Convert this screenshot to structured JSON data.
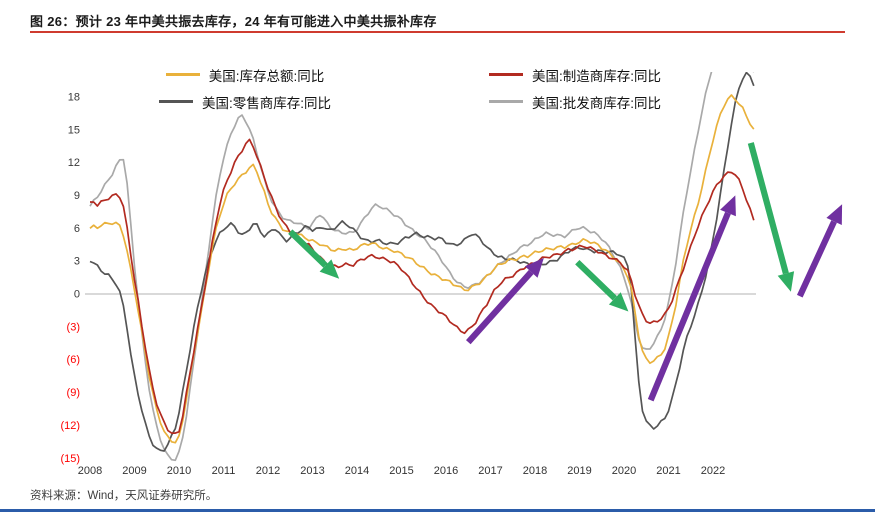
{
  "header": {
    "title": "图 26：预计 23 年中美共振去库存，24 年有可能进入中美共振补库存"
  },
  "footer": {
    "source": "资料来源：Wind，天风证券研究所。"
  },
  "chart_data": {
    "type": "line",
    "title": "图 26：预计 23 年中美共振去库存，24 年有可能进入中美共振补库存",
    "xlabel": "",
    "ylabel": "",
    "x_start_year": 2008,
    "x_step_months": 1,
    "xlim": [
      2007.8,
      2025.2
    ],
    "ylim": [
      -15.5,
      20.3
    ],
    "grid": "zero-line-only",
    "legend_position": "top",
    "x_ticks": [
      2008,
      2009,
      2010,
      2011,
      2012,
      2013,
      2014,
      2015,
      2016,
      2017,
      2018,
      2019,
      2020,
      2021,
      2022
    ],
    "y_ticks": [
      {
        "label": "18",
        "value": 18
      },
      {
        "label": "15",
        "value": 15
      },
      {
        "label": "12",
        "value": 12
      },
      {
        "label": "9",
        "value": 9
      },
      {
        "label": "6",
        "value": 6
      },
      {
        "label": "3",
        "value": 3
      },
      {
        "label": "0",
        "value": 0
      },
      {
        "label": "(3)",
        "value": -3
      },
      {
        "label": "(6)",
        "value": -6
      },
      {
        "label": "(9)",
        "value": -9
      },
      {
        "label": "(12)",
        "value": -12
      },
      {
        "label": "(15)",
        "value": -15
      }
    ],
    "colors": {
      "green_arrow": "#2FAE63",
      "purple_arrow": "#7030A0",
      "negative_tick": "#FF0000",
      "positive_tick": "#3A3A3A",
      "axis_text": "#333333",
      "zero_line": "#B3B3B3"
    },
    "series": [
      {
        "name": "美国:库存总额:同比",
        "color": "#E9B13B",
        "values": [
          6.0,
          6.1,
          6.0,
          6.2,
          6.3,
          6.4,
          6.5,
          6.5,
          6.3,
          5.5,
          4.0,
          2.2,
          0.4,
          -1.6,
          -3.6,
          -5.6,
          -7.6,
          -9.2,
          -10.6,
          -11.6,
          -12.5,
          -13.0,
          -13.3,
          -13.5,
          -13.1,
          -11.6,
          -9.6,
          -7.6,
          -5.6,
          -3.6,
          -1.6,
          0.4,
          2.4,
          4.4,
          6.0,
          7.2,
          8.2,
          9.0,
          9.5,
          10.0,
          10.4,
          10.8,
          11.2,
          11.6,
          11.8,
          11.3,
          10.3,
          9.3,
          8.2,
          7.4,
          6.8,
          6.3,
          5.9,
          5.7,
          5.6,
          5.7,
          5.6,
          5.4,
          5.2,
          5.0,
          4.8,
          4.6,
          4.5,
          4.3,
          4.2,
          4.1,
          4.0,
          4.1,
          4.2,
          4.2,
          4.1,
          4.0,
          4.2,
          4.3,
          4.4,
          4.5,
          4.6,
          4.5,
          4.4,
          4.3,
          4.2,
          4.1,
          4.0,
          3.8,
          3.6,
          3.4,
          3.2,
          3.0,
          2.8,
          2.6,
          2.4,
          2.2,
          2.0,
          1.8,
          1.6,
          1.4,
          1.2,
          1.0,
          0.8,
          0.7,
          0.5,
          0.4,
          0.5,
          0.7,
          0.9,
          1.1,
          1.3,
          1.6,
          1.9,
          2.2,
          2.5,
          2.7,
          2.9,
          3.1,
          3.2,
          3.3,
          3.4,
          3.5,
          3.5,
          3.6,
          3.7,
          3.8,
          3.9,
          4.0,
          4.1,
          4.2,
          4.3,
          4.4,
          4.4,
          4.5,
          4.5,
          4.6,
          4.7,
          4.8,
          4.8,
          4.7,
          4.6,
          4.5,
          4.3,
          4.1,
          3.8,
          3.5,
          3.1,
          2.7,
          2.2,
          1.5,
          0.3,
          -1.8,
          -3.8,
          -5.2,
          -5.9,
          -6.1,
          -6.0,
          -5.8,
          -5.5,
          -5.0,
          -4.0,
          -2.6,
          -1.0,
          1.0,
          3.0,
          4.6,
          6.0,
          7.2,
          8.4,
          9.8,
          11.2,
          12.6,
          14.0,
          15.2,
          16.3,
          17.2,
          17.8,
          18.1,
          17.9,
          17.5,
          17.0,
          16.3,
          15.6,
          14.9
        ]
      },
      {
        "name": "美国:制造商库存:同比",
        "color": "#B22A20",
        "values": [
          8.2,
          8.4,
          8.0,
          8.3,
          8.6,
          8.8,
          9.0,
          9.2,
          9.0,
          8.0,
          6.0,
          3.6,
          1.2,
          -0.8,
          -3.0,
          -5.0,
          -7.0,
          -8.6,
          -9.9,
          -10.9,
          -11.7,
          -12.3,
          -12.7,
          -12.9,
          -12.6,
          -11.2,
          -9.2,
          -7.2,
          -5.2,
          -3.2,
          -1.2,
          0.8,
          2.8,
          4.8,
          6.6,
          8.1,
          9.3,
          10.3,
          11.1,
          11.9,
          12.6,
          13.2,
          13.8,
          14.1,
          13.6,
          12.6,
          11.6,
          10.6,
          9.6,
          8.7,
          7.9,
          7.2,
          6.6,
          6.2,
          5.8,
          5.4,
          5.1,
          4.8,
          4.6,
          4.4,
          4.0,
          3.6,
          3.3,
          3.0,
          2.8,
          2.7,
          2.6,
          2.6,
          2.7,
          2.7,
          2.6,
          2.6,
          2.8,
          3.0,
          3.2,
          3.4,
          3.5,
          3.5,
          3.4,
          3.3,
          3.2,
          3.0,
          2.8,
          2.5,
          2.2,
          1.8,
          1.4,
          1.0,
          0.6,
          0.2,
          -0.2,
          -0.6,
          -1.0,
          -1.3,
          -1.6,
          -1.9,
          -2.2,
          -2.5,
          -2.8,
          -3.1,
          -3.3,
          -3.4,
          -3.2,
          -2.9,
          -2.5,
          -2.0,
          -1.5,
          -1.0,
          -0.4,
          0.2,
          0.7,
          1.1,
          1.4,
          1.6,
          1.8,
          2.0,
          2.2,
          2.4,
          2.5,
          2.6,
          2.8,
          3.0,
          3.2,
          3.4,
          3.5,
          3.6,
          3.7,
          3.8,
          3.9,
          4.0,
          4.0,
          4.1,
          4.2,
          4.3,
          4.3,
          4.2,
          4.1,
          4.0,
          3.8,
          3.6,
          3.4,
          3.2,
          3.0,
          2.8,
          2.4,
          2.0,
          1.2,
          0.0,
          -1.0,
          -1.8,
          -2.3,
          -2.6,
          -2.6,
          -2.5,
          -2.3,
          -2.0,
          -1.4,
          -0.6,
          0.4,
          1.4,
          2.4,
          3.4,
          4.4,
          5.4,
          6.2,
          7.0,
          7.8,
          8.5,
          9.2,
          9.9,
          10.4,
          10.8,
          11.1,
          11.3,
          11.0,
          10.4,
          9.6,
          8.6,
          7.6,
          6.6
        ]
      },
      {
        "name": "美国:零售商库存:同比",
        "color": "#555555",
        "values": [
          3.0,
          2.8,
          2.5,
          2.2,
          2.0,
          1.8,
          1.4,
          1.0,
          0.2,
          -1.2,
          -3.2,
          -5.6,
          -7.6,
          -9.2,
          -10.6,
          -11.9,
          -12.9,
          -13.6,
          -14.1,
          -14.3,
          -14.2,
          -13.8,
          -13.1,
          -12.3,
          -10.9,
          -9.0,
          -7.0,
          -5.0,
          -3.0,
          -1.2,
          0.4,
          1.8,
          3.0,
          4.0,
          4.8,
          5.4,
          5.8,
          6.2,
          6.4,
          6.2,
          5.8,
          5.5,
          5.6,
          6.0,
          6.4,
          6.2,
          5.6,
          5.2,
          5.4,
          5.8,
          6.0,
          5.6,
          5.2,
          5.0,
          5.2,
          5.5,
          5.6,
          5.8,
          6.0,
          6.0,
          5.8,
          5.9,
          6.0,
          6.2,
          6.0,
          5.9,
          6.1,
          6.4,
          6.5,
          6.3,
          6.1,
          5.8,
          5.5,
          5.2,
          5.0,
          4.9,
          4.9,
          5.0,
          4.9,
          4.7,
          4.6,
          4.5,
          4.5,
          4.6,
          4.8,
          5.1,
          5.3,
          5.5,
          5.6,
          5.5,
          5.3,
          5.2,
          5.1,
          5.0,
          5.0,
          4.9,
          4.7,
          4.6,
          4.5,
          4.6,
          4.8,
          5.0,
          5.3,
          5.5,
          5.3,
          5.0,
          4.6,
          4.2,
          3.9,
          3.7,
          3.5,
          3.4,
          3.3,
          3.3,
          3.2,
          3.0,
          2.9,
          2.8,
          2.6,
          2.5,
          2.6,
          2.7,
          2.8,
          2.9,
          3.0,
          3.1,
          3.2,
          3.4,
          3.6,
          3.8,
          4.0,
          4.1,
          4.2,
          4.2,
          4.1,
          4.1,
          4.0,
          4.0,
          3.9,
          3.8,
          3.8,
          3.7,
          3.6,
          3.5,
          3.2,
          2.6,
          0.5,
          -4.0,
          -8.0,
          -10.5,
          -11.6,
          -12.1,
          -12.3,
          -12.1,
          -11.8,
          -11.4,
          -10.6,
          -9.5,
          -8.1,
          -6.6,
          -5.1,
          -3.9,
          -2.9,
          -2.0,
          -1.0,
          0.2,
          1.5,
          3.1,
          5.0,
          7.0,
          9.2,
          11.4,
          13.6,
          15.6,
          17.4,
          18.8,
          19.6,
          20.0,
          19.8,
          19.1
        ]
      },
      {
        "name": "美国:批发商库存:同比",
        "color": "#A9A9A9",
        "values": [
          8.0,
          8.5,
          9.0,
          9.5,
          10.0,
          10.5,
          11.0,
          11.6,
          12.1,
          12.3,
          10.0,
          6.2,
          2.6,
          -0.6,
          -3.6,
          -6.2,
          -8.6,
          -10.6,
          -12.1,
          -13.3,
          -14.3,
          -14.9,
          -15.1,
          -15.2,
          -14.5,
          -13.0,
          -11.0,
          -8.6,
          -6.1,
          -3.6,
          -1.1,
          1.5,
          4.0,
          6.5,
          8.8,
          10.8,
          12.4,
          13.6,
          14.7,
          15.5,
          16.1,
          16.3,
          15.8,
          15.0,
          14.0,
          12.8,
          11.6,
          10.4,
          9.4,
          8.6,
          8.0,
          7.5,
          7.1,
          6.8,
          6.6,
          6.5,
          6.4,
          6.2,
          6.1,
          6.0,
          6.4,
          7.0,
          7.4,
          7.0,
          6.5,
          6.1,
          5.8,
          5.6,
          5.5,
          5.5,
          5.5,
          5.6,
          6.0,
          6.5,
          7.0,
          7.5,
          7.9,
          8.1,
          8.0,
          7.8,
          7.6,
          7.4,
          7.2,
          7.0,
          6.8,
          6.5,
          6.2,
          5.9,
          5.6,
          5.3,
          5.0,
          4.6,
          4.2,
          3.8,
          3.4,
          3.0,
          2.5,
          2.0,
          1.6,
          1.2,
          0.9,
          0.7,
          0.6,
          0.6,
          0.8,
          1.0,
          1.3,
          1.6,
          2.0,
          2.4,
          2.7,
          3.0,
          3.2,
          3.4,
          3.6,
          3.9,
          4.1,
          4.3,
          4.5,
          4.7,
          5.0,
          5.3,
          5.5,
          5.6,
          5.5,
          5.4,
          5.3,
          5.2,
          5.2,
          5.4,
          5.7,
          6.0,
          6.1,
          6.1,
          6.0,
          5.8,
          5.6,
          5.3,
          5.0,
          4.6,
          4.1,
          3.6,
          3.0,
          2.4,
          1.6,
          0.6,
          -0.8,
          -2.5,
          -4.0,
          -5.0,
          -5.2,
          -5.0,
          -4.6,
          -4.0,
          -3.2,
          -2.2,
          -0.8,
          1.0,
          3.0,
          5.2,
          7.4,
          9.4,
          11.2,
          13.0,
          14.8,
          16.6,
          18.2,
          19.6,
          21.0,
          22.4,
          23.6,
          24.4,
          24.9,
          25.0,
          24.6,
          24.0,
          23.2,
          22.2,
          21.2,
          20.2
        ]
      }
    ],
    "annotations": [
      {
        "shape": "arrow",
        "color": "green",
        "x1": 2012.5,
        "y1": 5.7,
        "x2": 2013.6,
        "y2": 1.4
      },
      {
        "shape": "arrow",
        "color": "purple",
        "x1": 2016.5,
        "y1": -4.4,
        "x2": 2018.2,
        "y2": 3.3
      },
      {
        "shape": "arrow",
        "color": "green",
        "x1": 2018.95,
        "y1": 2.9,
        "x2": 2020.1,
        "y2": -1.6
      },
      {
        "shape": "arrow",
        "color": "purple",
        "x1": 2020.6,
        "y1": -9.7,
        "x2": 2022.5,
        "y2": 9.0
      },
      {
        "shape": "arrow",
        "color": "green",
        "x1": 2022.85,
        "y1": 13.8,
        "x2": 2023.75,
        "y2": 0.2
      },
      {
        "shape": "arrow",
        "color": "purple",
        "x1": 2023.95,
        "y1": -0.2,
        "x2": 2024.9,
        "y2": 8.2
      }
    ]
  }
}
